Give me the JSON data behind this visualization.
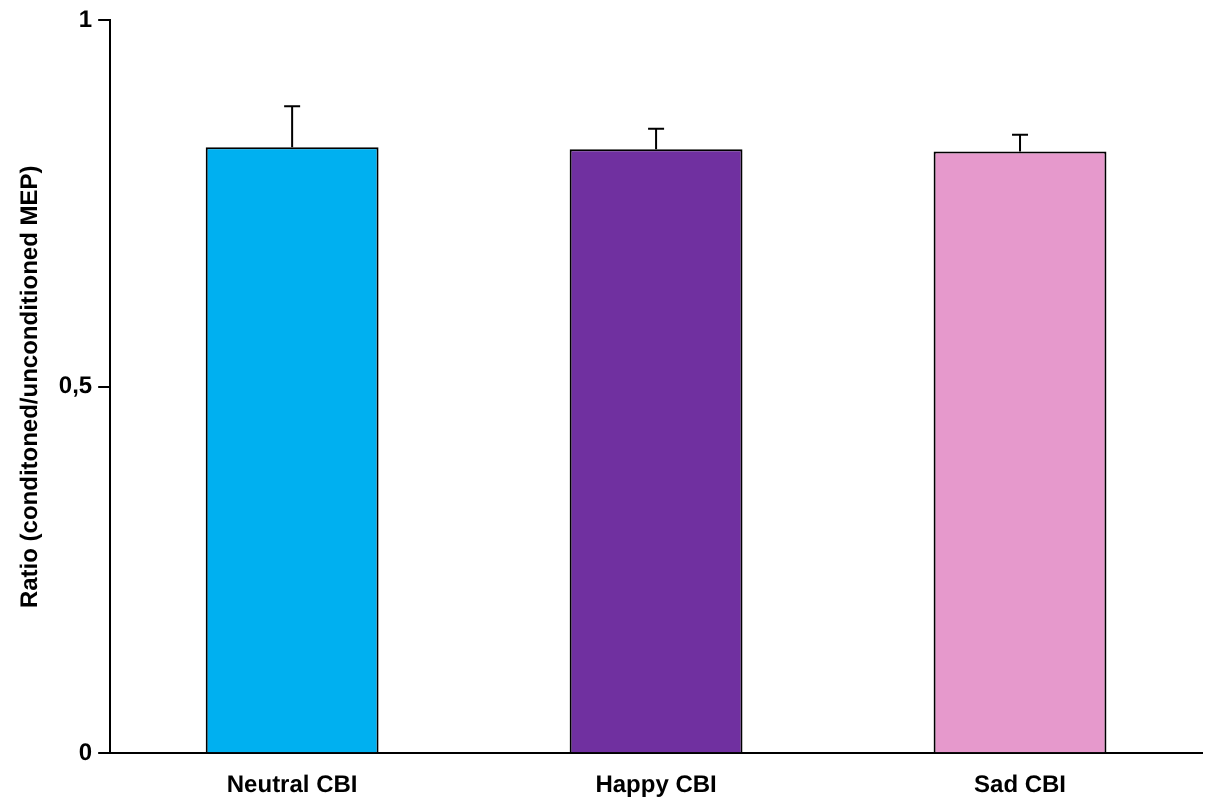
{
  "chart_data": {
    "type": "bar",
    "ylabel": "Ratio (conditoned/unconditioned MEP)",
    "categories": [
      "Neutral CBI",
      "Happy CBI",
      "Sad CBI"
    ],
    "values": [
      0.827,
      0.824,
      0.821
    ],
    "colors": [
      "#00b0f0",
      "#7030a0",
      "#e699cc"
    ],
    "errors": [
      [
        0.827,
        0.883
      ],
      [
        0.824,
        0.852
      ],
      [
        0.821,
        0.844
      ]
    ],
    "ylim": [
      0,
      1
    ],
    "yticks": [
      0,
      {
        "value": 0.5,
        "label": "0,5"
      },
      1
    ],
    "grid": false,
    "legend": false
  }
}
